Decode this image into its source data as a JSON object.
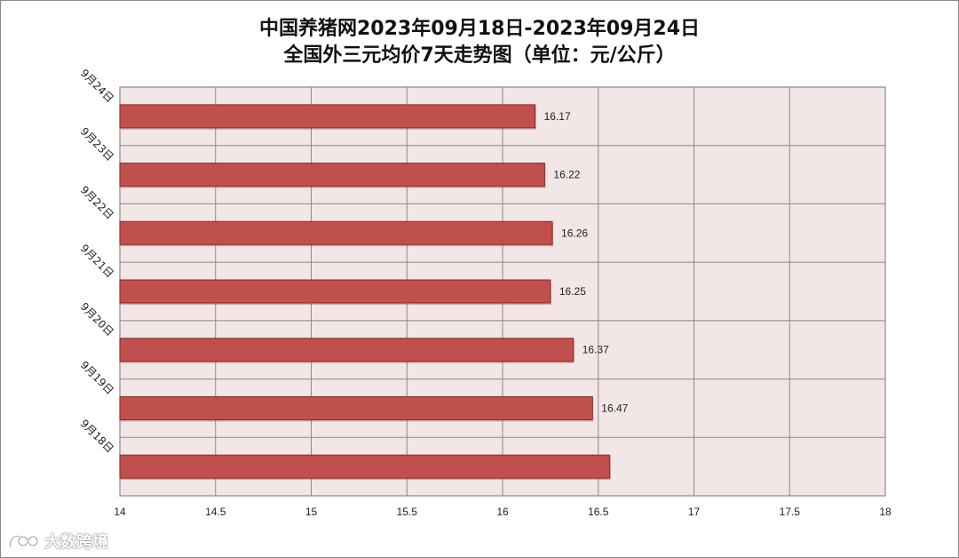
{
  "title": {
    "line1": "中国养猪网2023年09月18日-2023年09月24日",
    "line2": "全国外三元均价7天走势图（单位：元/公斤）"
  },
  "watermark": {
    "text": "大数跨境",
    "icon": "logo-icon"
  },
  "colors": {
    "bar_fill": "#c0504d",
    "bar_stroke": "#8c2a28",
    "plot_bg": "#f2e6e6",
    "grid": "#8a8a8a"
  },
  "chart_data": {
    "type": "bar",
    "orientation": "horizontal",
    "categories": [
      "9月24日",
      "9月23日",
      "9月22日",
      "9月21日",
      "9月20日",
      "9月19日",
      "9月18日"
    ],
    "values": [
      16.17,
      16.22,
      16.26,
      16.25,
      16.37,
      16.47,
      16.56
    ],
    "data_labels": [
      "16.17",
      "16.22",
      "16.26",
      "16.25",
      "16.37",
      "16.47",
      ""
    ],
    "xlim": [
      14,
      18
    ],
    "x_ticks": [
      "14",
      "14.5",
      "15",
      "15.5",
      "16",
      "16.5",
      "17",
      "17.5",
      "18"
    ],
    "grid": true,
    "legend": "none"
  }
}
